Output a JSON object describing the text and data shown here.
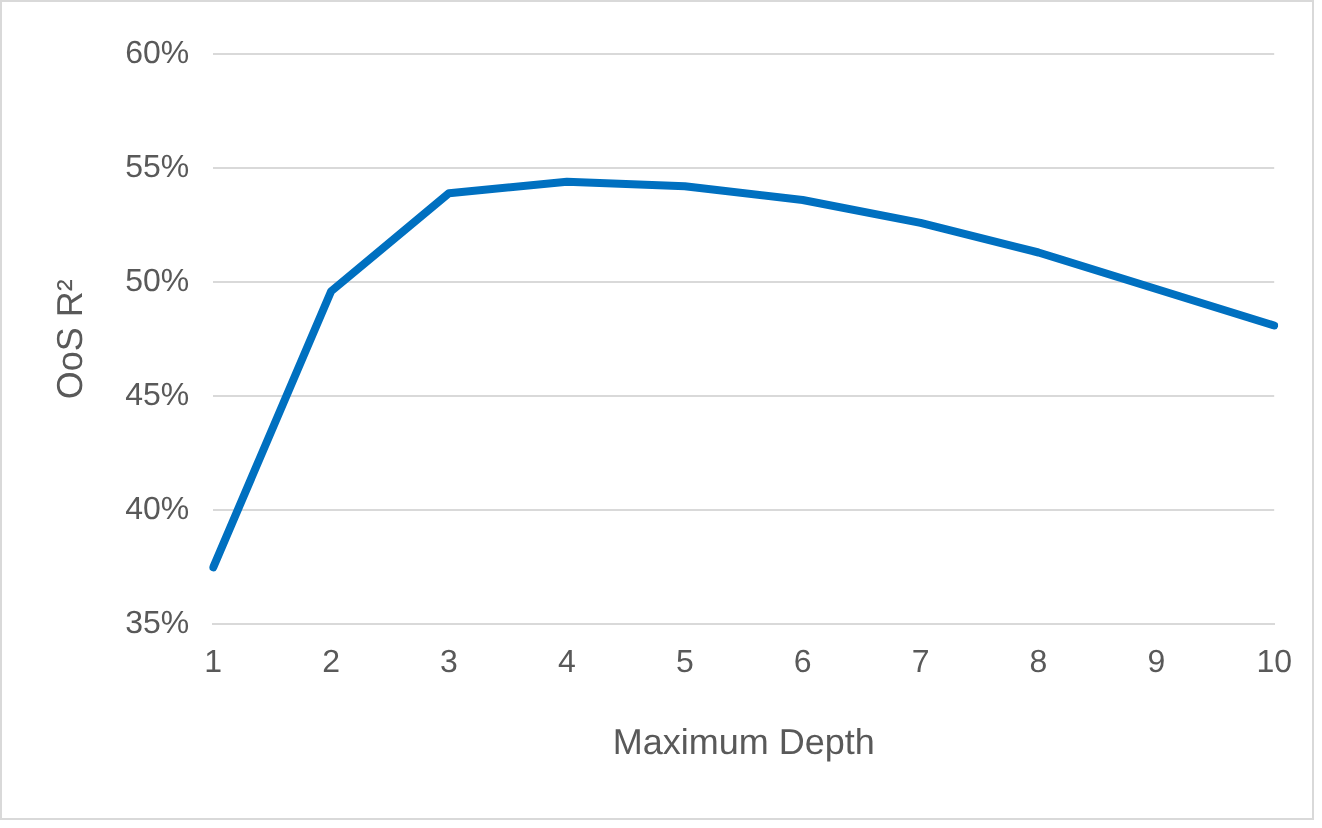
{
  "chart_data": {
    "type": "line",
    "xlabel": "Maximum Depth",
    "ylabel": "OoS R²",
    "categories": [
      "1",
      "2",
      "3",
      "4",
      "5",
      "6",
      "7",
      "8",
      "9",
      "10"
    ],
    "series": [
      {
        "color": "#0070c0",
        "values": [
          37.5,
          49.6,
          53.9,
          54.4,
          54.2,
          53.6,
          52.6,
          51.3,
          49.7,
          48.1
        ]
      }
    ],
    "ylim": [
      35,
      60
    ],
    "yticks": [
      {
        "value": 35,
        "label": "35%"
      },
      {
        "value": 40,
        "label": "40%"
      },
      {
        "value": 45,
        "label": "45%"
      },
      {
        "value": 50,
        "label": "50%"
      },
      {
        "value": 55,
        "label": "55%"
      },
      {
        "value": 60,
        "label": "60%"
      }
    ],
    "grid": "y",
    "legend": false,
    "marker": "none",
    "line_style": "solid"
  }
}
